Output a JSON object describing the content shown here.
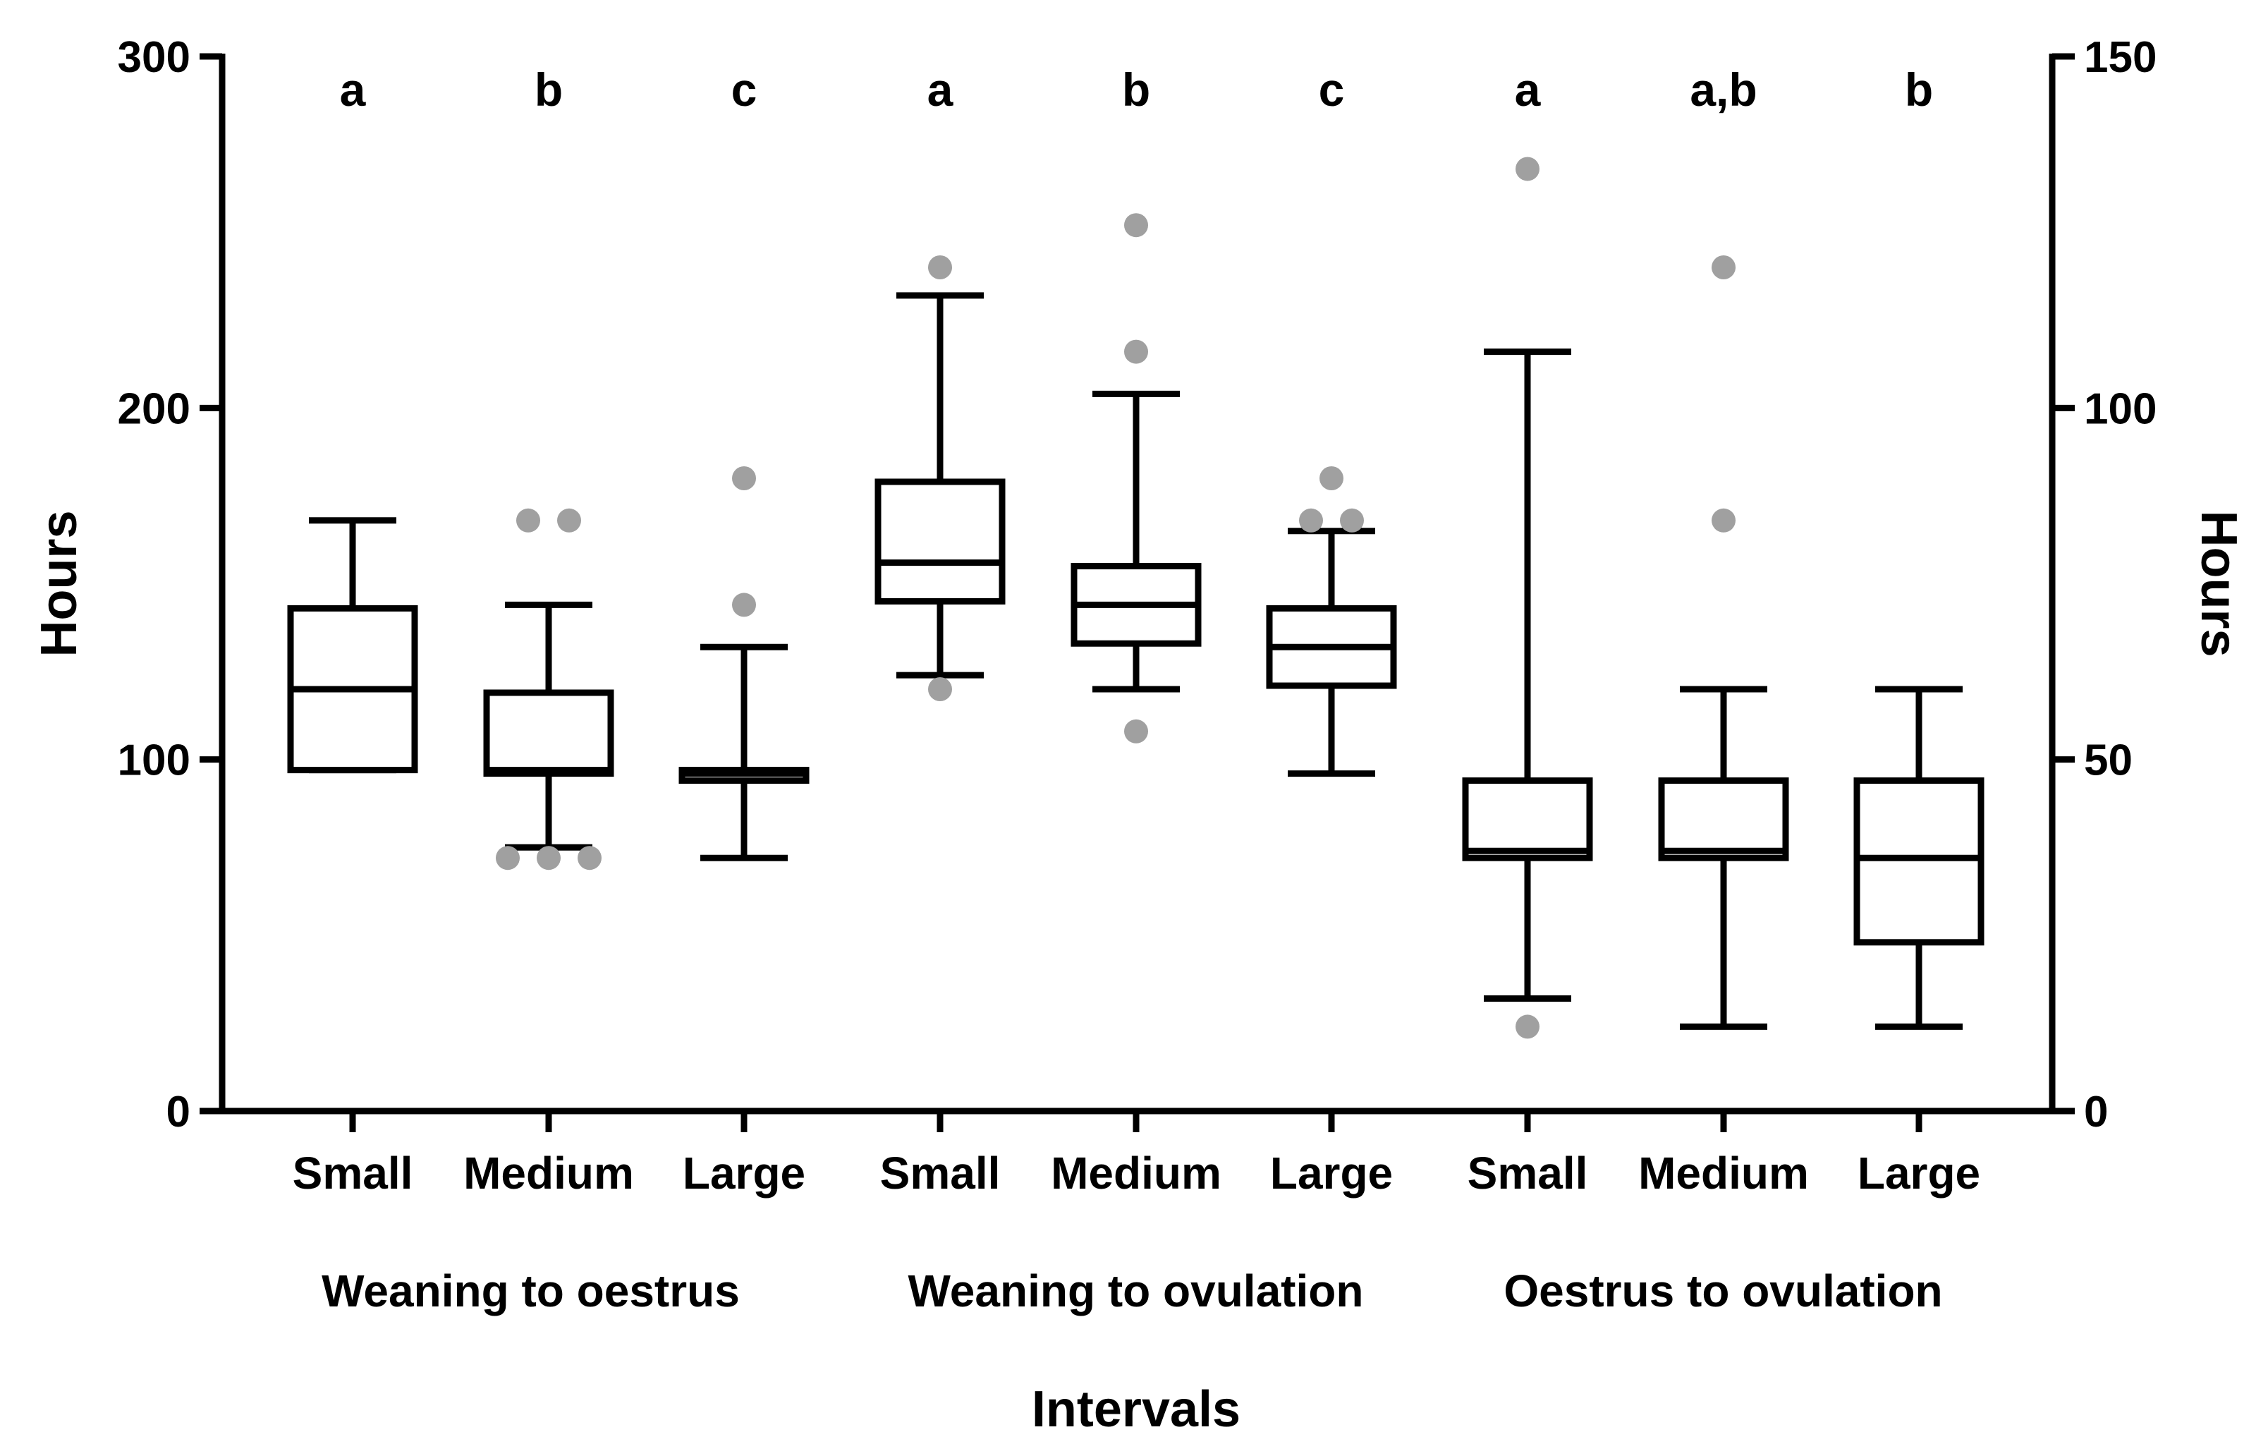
{
  "chart_data": {
    "type": "boxplot",
    "title": "",
    "xlabel": "Intervals",
    "ylabel": "Hours",
    "y2label": "Hours",
    "ylim": [
      0,
      300
    ],
    "y2lim": [
      0,
      150
    ],
    "yticks": [
      0,
      100,
      200,
      300
    ],
    "y2ticks": [
      0,
      50,
      100,
      150
    ],
    "grid": false,
    "colors": {
      "box": "#000000",
      "outlier": "#a0a0a0"
    },
    "groups": [
      {
        "name": "Weaning to oestrus",
        "axis": "left",
        "boxes": [
          {
            "category": "Small",
            "letter": "a",
            "whisker_low": 97,
            "q1": 97,
            "median": 120,
            "q3": 143,
            "whisker_high": 168,
            "outliers": []
          },
          {
            "category": "Medium",
            "letter": "b",
            "whisker_low": 75,
            "q1": 96,
            "median": 97,
            "q3": 119,
            "whisker_high": 144,
            "outliers": [
              72,
              72,
              72,
              168,
              168
            ]
          },
          {
            "category": "Large",
            "letter": "c",
            "whisker_low": 72,
            "q1": 94,
            "median": 96,
            "q3": 97,
            "whisker_high": 132,
            "outliers": [
              144,
              180
            ]
          }
        ]
      },
      {
        "name": "Weaning to ovulation",
        "axis": "left",
        "boxes": [
          {
            "category": "Small",
            "letter": "a",
            "whisker_low": 124,
            "q1": 145,
            "median": 156,
            "q3": 179,
            "whisker_high": 232,
            "outliers": [
              120,
              240
            ]
          },
          {
            "category": "Medium",
            "letter": "b",
            "whisker_low": 120,
            "q1": 133,
            "median": 144,
            "q3": 155,
            "whisker_high": 204,
            "outliers": [
              108,
              216,
              252
            ]
          },
          {
            "category": "Large",
            "letter": "c",
            "whisker_low": 96,
            "q1": 121,
            "median": 132,
            "q3": 143,
            "whisker_high": 165,
            "outliers": [
              168,
              168,
              180
            ]
          }
        ]
      },
      {
        "name": "Oestrus to ovulation",
        "axis": "right",
        "boxes": [
          {
            "category": "Small",
            "letter": "a",
            "whisker_low": 16,
            "q1": 36,
            "median": 37,
            "q3": 47,
            "whisker_high": 108,
            "outliers": [
              12,
              134
            ]
          },
          {
            "category": "Medium",
            "letter": "a,b",
            "whisker_low": 12,
            "q1": 36,
            "median": 37,
            "q3": 47,
            "whisker_high": 60,
            "outliers": [
              84,
              120
            ]
          },
          {
            "category": "Large",
            "letter": "b",
            "whisker_low": 12,
            "q1": 24,
            "median": 36,
            "q3": 47,
            "whisker_high": 60,
            "outliers": []
          }
        ]
      }
    ]
  }
}
